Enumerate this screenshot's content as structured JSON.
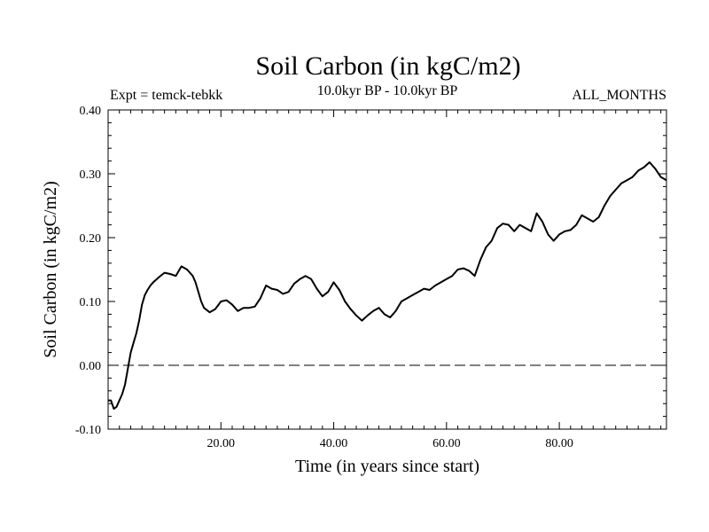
{
  "chart_data": {
    "type": "line",
    "title": "Soil Carbon (in kgC/m2)",
    "subtitle": "10.0kyr BP - 10.0kyr BP",
    "experiment_label": "Expt = temck-tebkk",
    "period_label": "ALL_MONTHS",
    "xlabel": "Time (in years since start)",
    "ylabel": "Soil Carbon (in kgC/m2)",
    "xlim": [
      0,
      99
    ],
    "ylim": [
      -0.1,
      0.4
    ],
    "x_ticks": [
      {
        "value": 20,
        "label": "20.00"
      },
      {
        "value": 40,
        "label": "40.00"
      },
      {
        "value": 60,
        "label": "60.00"
      },
      {
        "value": 80,
        "label": "80.00"
      }
    ],
    "y_ticks": [
      {
        "value": -0.1,
        "label": "-0.10"
      },
      {
        "value": 0.0,
        "label": "0.00"
      },
      {
        "value": 0.1,
        "label": "0.10"
      },
      {
        "value": 0.2,
        "label": "0.20"
      },
      {
        "value": 0.3,
        "label": "0.30"
      },
      {
        "value": 0.4,
        "label": "0.40"
      }
    ],
    "reference_line": {
      "y": 0.0,
      "style": "dashed"
    },
    "grid": false,
    "series": [
      {
        "name": "Soil Carbon",
        "x": [
          0,
          0.5,
          1,
          1.5,
          2,
          2.5,
          3,
          3.5,
          4,
          4.5,
          5,
          5.5,
          6,
          6.5,
          7,
          7.5,
          8,
          9,
          10,
          11,
          12,
          13,
          14,
          15,
          15.5,
          16,
          16.5,
          17,
          18,
          19,
          20,
          21,
          22,
          23,
          24,
          25,
          26,
          27,
          28,
          29,
          30,
          31,
          32,
          33,
          34,
          35,
          36,
          37,
          38,
          39,
          40,
          41,
          42,
          43,
          44,
          45,
          46,
          47,
          48,
          49,
          50,
          51,
          52,
          53,
          54,
          55,
          56,
          57,
          58,
          59,
          60,
          61,
          62,
          63,
          64,
          65,
          66,
          67,
          68,
          69,
          70,
          71,
          72,
          73,
          74,
          75,
          76,
          77,
          78,
          79,
          80,
          81,
          82,
          83,
          84,
          85,
          86,
          87,
          88,
          89,
          90,
          91,
          92,
          93,
          94,
          95,
          96,
          97,
          98,
          99
        ],
        "y": [
          -0.055,
          -0.055,
          -0.068,
          -0.065,
          -0.055,
          -0.045,
          -0.03,
          -0.005,
          0.02,
          0.035,
          0.05,
          0.07,
          0.095,
          0.11,
          0.118,
          0.125,
          0.13,
          0.138,
          0.145,
          0.143,
          0.14,
          0.155,
          0.15,
          0.14,
          0.13,
          0.115,
          0.1,
          0.09,
          0.083,
          0.088,
          0.1,
          0.102,
          0.095,
          0.085,
          0.09,
          0.09,
          0.092,
          0.105,
          0.125,
          0.12,
          0.118,
          0.112,
          0.115,
          0.128,
          0.135,
          0.14,
          0.135,
          0.12,
          0.108,
          0.115,
          0.13,
          0.118,
          0.1,
          0.088,
          0.078,
          0.07,
          0.078,
          0.085,
          0.09,
          0.08,
          0.075,
          0.085,
          0.1,
          0.105,
          0.11,
          0.115,
          0.12,
          0.118,
          0.125,
          0.13,
          0.135,
          0.14,
          0.15,
          0.152,
          0.148,
          0.14,
          0.165,
          0.185,
          0.195,
          0.215,
          0.222,
          0.22,
          0.21,
          0.22,
          0.215,
          0.21,
          0.238,
          0.225,
          0.205,
          0.195,
          0.205,
          0.21,
          0.212,
          0.22,
          0.235,
          0.23,
          0.225,
          0.232,
          0.25,
          0.265,
          0.275,
          0.285,
          0.29,
          0.295,
          0.305,
          0.31,
          0.318,
          0.308,
          0.295,
          0.29
        ]
      }
    ]
  }
}
